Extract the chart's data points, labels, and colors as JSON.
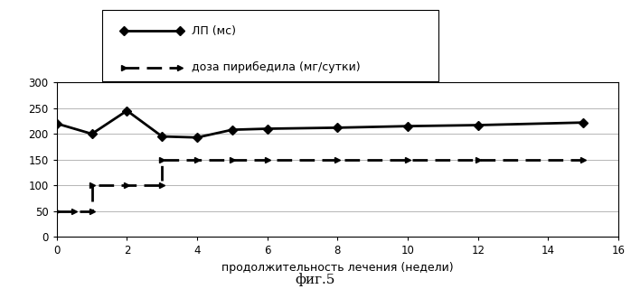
{
  "lp_x": [
    0,
    1,
    2,
    3,
    4,
    5,
    6,
    8,
    10,
    12,
    15
  ],
  "lp_y": [
    220,
    200,
    245,
    195,
    193,
    208,
    210,
    212,
    215,
    217,
    222
  ],
  "dose_x": [
    0,
    0.5,
    1,
    1,
    2,
    3,
    3,
    4,
    5,
    6,
    8,
    10,
    12,
    15
  ],
  "dose_y": [
    50,
    50,
    50,
    100,
    100,
    100,
    150,
    150,
    150,
    150,
    150,
    150,
    150,
    150
  ],
  "xlabel": "продолжительность лечения (недели)",
  "caption": "фиг.5",
  "legend_lp": "ЛП (мс)",
  "legend_dose": "доза пирибедила (мг/сутки)",
  "ylim": [
    0,
    300
  ],
  "xlim": [
    0,
    16
  ],
  "yticks": [
    0,
    50,
    100,
    150,
    200,
    250,
    300
  ],
  "xticks": [
    0,
    2,
    4,
    6,
    8,
    10,
    12,
    14,
    16
  ],
  "line_color": "#000000",
  "bg_color": "#ffffff"
}
